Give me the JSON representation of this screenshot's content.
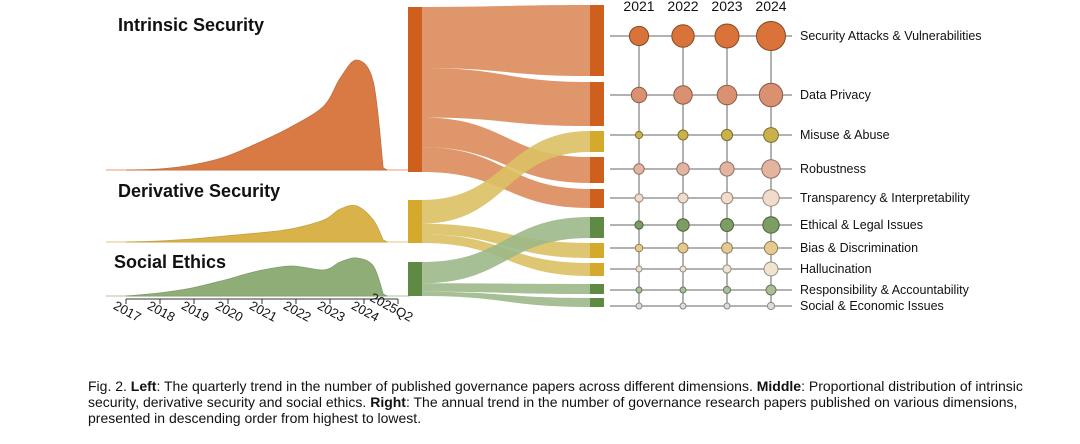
{
  "chart_data": [
    {
      "type": "area",
      "name": "quarterly-trend",
      "title": "",
      "xlabel": "",
      "ylabel": "",
      "x_ticks": [
        "2017",
        "2018",
        "2019",
        "2020",
        "2021",
        "2022",
        "2023",
        "2024",
        "2025Q2"
      ],
      "series": [
        {
          "name": "Intrinsic Security",
          "color": "#d97a45",
          "x": [
            2017,
            2018,
            2019,
            2020,
            2021,
            2022,
            2023,
            2023.5,
            2024,
            2024.5,
            2024.8
          ],
          "values": [
            0,
            1,
            5,
            13,
            27,
            43,
            64,
            92,
            110,
            88,
            2
          ]
        },
        {
          "name": "Derivative Security",
          "color": "#d9b34a",
          "x": [
            2017,
            2018,
            2019,
            2020,
            2021,
            2022,
            2023,
            2023.5,
            2024,
            2024.5,
            2024.8
          ],
          "values": [
            0,
            1,
            3,
            6,
            9,
            13,
            22,
            33,
            36,
            22,
            2
          ]
        },
        {
          "name": "Social Ethics",
          "color": "#8fae77",
          "x": [
            2017,
            2018,
            2019,
            2020,
            2021,
            2022,
            2023,
            2023.5,
            2024,
            2024.5,
            2024.8
          ],
          "values": [
            0,
            3,
            8,
            16,
            25,
            30,
            26,
            34,
            38,
            30,
            2
          ]
        }
      ]
    },
    {
      "type": "sankey",
      "name": "proportional-distribution",
      "sources": [
        {
          "name": "Intrinsic Security",
          "color": "#cf5f1c",
          "value": 100
        },
        {
          "name": "Derivative Security",
          "color": "#d4a92c",
          "value": 20
        },
        {
          "name": "Social Ethics",
          "color": "#5f8a43",
          "value": 16
        }
      ],
      "links": [
        {
          "source": 0,
          "target": 0,
          "value": 37
        },
        {
          "source": 0,
          "target": 1,
          "value": 30
        },
        {
          "source": 0,
          "target": 3,
          "value": 18
        },
        {
          "source": 0,
          "target": 4,
          "value": 15
        },
        {
          "source": 1,
          "target": 2,
          "value": 11
        },
        {
          "source": 1,
          "target": 6,
          "value": 5
        },
        {
          "source": 1,
          "target": 7,
          "value": 4
        },
        {
          "source": 2,
          "target": 5,
          "value": 10
        },
        {
          "source": 2,
          "target": 8,
          "value": 4
        },
        {
          "source": 2,
          "target": 9,
          "value": 2
        }
      ]
    },
    {
      "type": "scatter",
      "name": "annual-trend",
      "years": [
        "2021",
        "2022",
        "2023",
        "2024"
      ],
      "dimensions": [
        {
          "name": "Security Attacks & Vulnerabilities",
          "color": "#d9733a",
          "values": [
            44,
            60,
            68,
            100
          ]
        },
        {
          "name": "Data Privacy",
          "color": "#d99171",
          "values": [
            28,
            40,
            46,
            65
          ]
        },
        {
          "name": "Misuse & Abuse",
          "color": "#c9b24a",
          "values": [
            6,
            12,
            15,
            26
          ]
        },
        {
          "name": "Robustness",
          "color": "#e3b5a1",
          "values": [
            13,
            18,
            24,
            40
          ]
        },
        {
          "name": "Transparency & Interpretability",
          "color": "#f1dccb",
          "values": [
            8,
            12,
            16,
            32
          ]
        },
        {
          "name": "Ethical & Legal Issues",
          "color": "#7c9d63",
          "values": [
            8,
            18,
            20,
            32
          ]
        },
        {
          "name": "Bias & Discrimination",
          "color": "#e6c98f",
          "values": [
            7,
            12,
            14,
            21
          ]
        },
        {
          "name": "Hallucination",
          "color": "#efe4cf",
          "values": [
            2,
            3,
            8,
            23
          ]
        },
        {
          "name": "Responsibility & Accountability",
          "color": "#a8bf98",
          "values": [
            2,
            4,
            6,
            12
          ]
        },
        {
          "name": "Social & Economic Issues",
          "color": "#d8dfd4",
          "values": [
            1,
            2,
            3,
            6
          ]
        }
      ]
    }
  ],
  "caption": {
    "fig_label": "Fig. 2.",
    "left_label": "Left",
    "left_text": ": The quarterly trend in the number of published governance papers across different dimensions.",
    "middle_label": "Middle",
    "middle_text": ": Proportional distribution of intrinsic security, derivative security and social ethics.",
    "right_label": "Right",
    "right_text": ": The annual trend in the number of governance research papers published on various dimensions, presented in descending order from highest to lowest."
  }
}
